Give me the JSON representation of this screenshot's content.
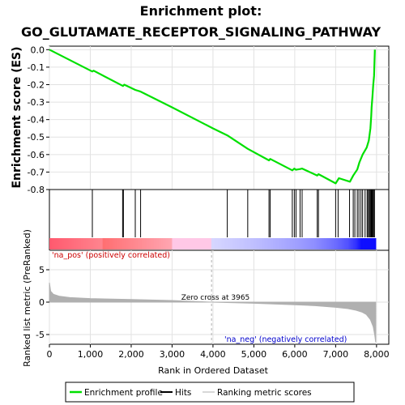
{
  "chart_data": {
    "type": "line",
    "title_line1": "Enrichment plot:",
    "title_line2": "GO_GLUTAMATE_RECEPTOR_SIGNALING_PATHWAY",
    "es_ylabel": "Enrichment score (ES)",
    "metric_ylabel": "Ranked list metric (PreRanked)",
    "xlabel": "Rank in Ordered Dataset",
    "xlim": [
      0,
      8300
    ],
    "es_ylim": [
      -0.8,
      0.02
    ],
    "metric_ylim": [
      -6.5,
      8
    ],
    "x_ticks": [
      0,
      1000,
      2000,
      3000,
      4000,
      5000,
      6000,
      7000,
      8000
    ],
    "x_tick_labels": [
      "0",
      "1,000",
      "2,000",
      "3,000",
      "4,000",
      "5,000",
      "6,000",
      "7,000",
      "8,000"
    ],
    "es_ticks": [
      0.0,
      -0.1,
      -0.2,
      -0.3,
      -0.4,
      -0.5,
      -0.6,
      -0.7,
      -0.8
    ],
    "es_tick_labels": [
      "0.0",
      "-0.1",
      "-0.2",
      "-0.3",
      "-0.4",
      "-0.5",
      "-0.6",
      "-0.7",
      "-0.8"
    ],
    "metric_ticks": [
      5,
      0,
      -5
    ],
    "metric_tick_labels": [
      "5",
      "0",
      "-5"
    ],
    "enrichment_profile": {
      "x": [
        0,
        1050,
        1080,
        1800,
        1830,
        2100,
        2230,
        3000,
        4000,
        4350,
        4850,
        5370,
        5400,
        5940,
        5990,
        6030,
        6130,
        6180,
        6550,
        6580,
        7000,
        7080,
        7350,
        7430,
        7530,
        7580,
        7660,
        7760,
        7810,
        7850,
        7870,
        7880,
        7900,
        7920,
        7940,
        7960
      ],
      "y": [
        0.0,
        -0.125,
        -0.12,
        -0.208,
        -0.2,
        -0.23,
        -0.24,
        -0.33,
        -0.45,
        -0.49,
        -0.567,
        -0.633,
        -0.625,
        -0.69,
        -0.68,
        -0.687,
        -0.683,
        -0.68,
        -0.72,
        -0.712,
        -0.765,
        -0.735,
        -0.755,
        -0.72,
        -0.685,
        -0.645,
        -0.6,
        -0.56,
        -0.52,
        -0.45,
        -0.38,
        -0.33,
        -0.27,
        -0.2,
        -0.15,
        0.0
      ]
    },
    "hits": [
      1050,
      1790,
      1810,
      2100,
      2230,
      4350,
      4850,
      5370,
      5400,
      5940,
      5990,
      6030,
      6130,
      6180,
      6550,
      6580,
      7000,
      7060,
      7340,
      7430,
      7470,
      7530,
      7570,
      7620,
      7660,
      7720,
      7770,
      7790,
      7820,
      7840,
      7860,
      7870,
      7880,
      7890,
      7900,
      7910,
      7930,
      7950
    ],
    "metric_curve": {
      "x": [
        0,
        30,
        100,
        250,
        500,
        1000,
        2000,
        3000,
        3965,
        5000,
        6000,
        6500,
        7000,
        7300,
        7500,
        7650,
        7750,
        7850,
        7920,
        7960,
        7980
      ],
      "y": [
        3.0,
        1.7,
        1.2,
        0.9,
        0.7,
        0.55,
        0.4,
        0.25,
        0.0,
        -0.18,
        -0.4,
        -0.55,
        -0.8,
        -1.0,
        -1.25,
        -1.55,
        -1.9,
        -2.7,
        -3.8,
        -5.2,
        -6.2
      ]
    },
    "zero_cross_rank": 3965,
    "zero_cross_label": "Zero cross at 3965",
    "pos_label": "'na_pos' (positively correlated)",
    "neg_label": "'na_neg' (negatively correlated)",
    "legend": {
      "profile": "Enrichment profile",
      "hits": "Hits",
      "metric": "Ranking metric scores"
    },
    "colors": {
      "profile": "#00e000",
      "hits": "#000000",
      "metric_fill": "#b0b0b0",
      "pos_label": "#cc0000",
      "neg_label": "#0000cc",
      "zero_line": "#b0b0b0"
    }
  }
}
